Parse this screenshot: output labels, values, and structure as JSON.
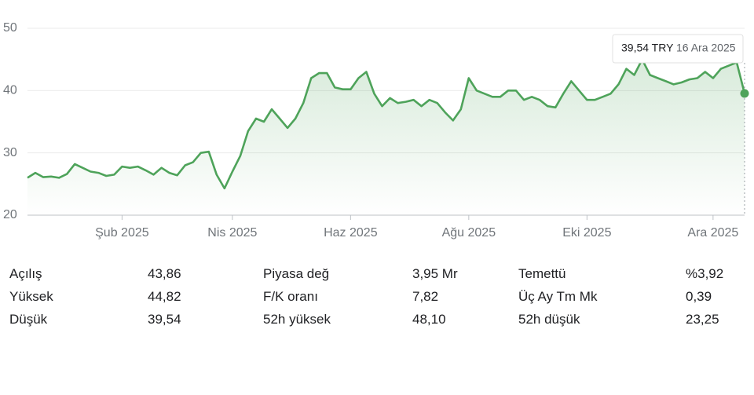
{
  "chart_data": {
    "type": "line",
    "categories": [
      null,
      null,
      null,
      null,
      null,
      null,
      null,
      null,
      null,
      null,
      null,
      null,
      "Şub 2025",
      null,
      null,
      null,
      null,
      null,
      null,
      null,
      null,
      null,
      null,
      null,
      null,
      null,
      "Nis 2025",
      null,
      null,
      null,
      null,
      null,
      null,
      null,
      null,
      null,
      null,
      null,
      null,
      null,
      null,
      "Haz 2025",
      null,
      null,
      null,
      null,
      null,
      null,
      null,
      null,
      null,
      null,
      null,
      null,
      null,
      null,
      "Ağu 2025",
      null,
      null,
      null,
      null,
      null,
      null,
      null,
      null,
      null,
      null,
      null,
      null,
      null,
      null,
      "Eki 2025",
      null,
      null,
      null,
      null,
      null,
      null,
      null,
      null,
      null,
      null,
      null,
      null,
      null,
      null,
      null,
      "Ara 2025",
      null,
      null,
      null,
      null
    ],
    "values": [
      26.0,
      26.8,
      26.1,
      26.2,
      26.0,
      26.6,
      28.2,
      27.6,
      27.0,
      26.8,
      26.3,
      26.5,
      27.8,
      27.6,
      27.8,
      27.2,
      26.5,
      27.6,
      26.8,
      26.4,
      28.0,
      28.5,
      30.0,
      30.2,
      26.5,
      24.3,
      27.0,
      29.5,
      33.5,
      35.5,
      35.0,
      37.0,
      35.5,
      34.0,
      35.5,
      38.0,
      42.0,
      42.8,
      42.8,
      40.5,
      40.2,
      40.2,
      42.0,
      43.0,
      39.5,
      37.5,
      38.8,
      38.0,
      38.2,
      38.5,
      37.5,
      38.5,
      38.0,
      36.5,
      35.2,
      37.0,
      42.0,
      40.0,
      39.5,
      39.0,
      39.0,
      40.0,
      40.0,
      38.5,
      39.0,
      38.5,
      37.5,
      37.3,
      39.5,
      41.5,
      40.0,
      38.5,
      38.5,
      39.0,
      39.5,
      41.0,
      43.5,
      42.5,
      45.0,
      42.5,
      42.0,
      41.5,
      41.0,
      41.3,
      41.8,
      42.0,
      43.0,
      42.0,
      43.5,
      44.0,
      44.5,
      39.54
    ],
    "color": "#4ea35a",
    "ylim": [
      20,
      50
    ],
    "yticks": [
      20,
      30,
      40,
      50
    ],
    "grid": true,
    "tooltip": {
      "value": 39.54,
      "label": "39,54 TRY",
      "date": "16 Ara 2025"
    }
  },
  "stats": [
    [
      "Açılış",
      "43,86",
      "Piyasa değ",
      "3,95 Mr",
      "Temettü",
      "%3,92"
    ],
    [
      "Yüksek",
      "44,82",
      "F/K oranı",
      "7,82",
      "Üç Ay Tm Mk",
      "0,39"
    ],
    [
      "Düşük",
      "39,54",
      "52h yüksek",
      "48,10",
      "52h düşük",
      "23,25"
    ]
  ]
}
